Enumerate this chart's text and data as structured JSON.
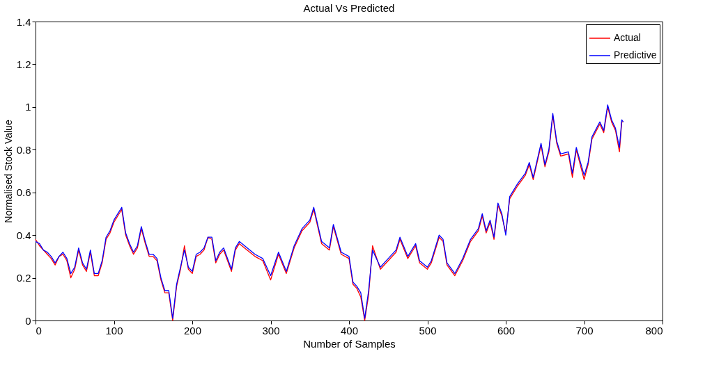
{
  "chart_data": {
    "type": "line",
    "title": "Actual Vs Predicted",
    "xlabel": "Number of Samples",
    "ylabel": "Normalised Stock Value",
    "x": [
      0,
      5,
      10,
      15,
      20,
      25,
      30,
      35,
      40,
      45,
      50,
      55,
      60,
      65,
      70,
      75,
      80,
      85,
      90,
      95,
      100,
      105,
      110,
      115,
      120,
      125,
      130,
      135,
      140,
      145,
      150,
      155,
      160,
      165,
      170,
      175,
      180,
      185,
      190,
      195,
      200,
      205,
      210,
      215,
      220,
      225,
      230,
      235,
      240,
      245,
      250,
      255,
      260,
      270,
      280,
      290,
      300,
      310,
      320,
      330,
      340,
      350,
      355,
      365,
      375,
      380,
      390,
      400,
      405,
      410,
      415,
      420,
      425,
      430,
      440,
      450,
      460,
      465,
      475,
      485,
      490,
      500,
      505,
      515,
      520,
      525,
      535,
      545,
      555,
      565,
      570,
      575,
      580,
      585,
      590,
      595,
      600,
      605,
      615,
      625,
      630,
      635,
      645,
      650,
      655,
      660,
      665,
      670,
      680,
      685,
      690,
      700,
      705,
      710,
      720,
      725,
      730,
      735,
      740,
      745,
      748,
      750
    ],
    "series": [
      {
        "name": "Actual",
        "color": "#ff0000",
        "values": [
          0.38,
          0.35,
          0.33,
          0.31,
          0.29,
          0.26,
          0.3,
          0.31,
          0.28,
          0.2,
          0.24,
          0.33,
          0.26,
          0.23,
          0.32,
          0.21,
          0.21,
          0.27,
          0.38,
          0.41,
          0.46,
          0.49,
          0.52,
          0.4,
          0.35,
          0.31,
          0.34,
          0.43,
          0.36,
          0.3,
          0.3,
          0.28,
          0.19,
          0.13,
          0.13,
          0.0,
          0.16,
          0.24,
          0.35,
          0.24,
          0.22,
          0.3,
          0.31,
          0.33,
          0.39,
          0.38,
          0.27,
          0.31,
          0.33,
          0.28,
          0.23,
          0.33,
          0.36,
          0.33,
          0.3,
          0.28,
          0.19,
          0.31,
          0.22,
          0.34,
          0.42,
          0.46,
          0.52,
          0.36,
          0.33,
          0.44,
          0.31,
          0.29,
          0.17,
          0.15,
          0.11,
          0.0,
          0.12,
          0.35,
          0.24,
          0.28,
          0.32,
          0.38,
          0.29,
          0.35,
          0.27,
          0.24,
          0.27,
          0.39,
          0.37,
          0.26,
          0.21,
          0.28,
          0.37,
          0.42,
          0.49,
          0.41,
          0.46,
          0.38,
          0.54,
          0.49,
          0.41,
          0.57,
          0.63,
          0.68,
          0.73,
          0.66,
          0.82,
          0.72,
          0.79,
          0.96,
          0.83,
          0.77,
          0.78,
          0.67,
          0.8,
          0.66,
          0.73,
          0.85,
          0.92,
          0.88,
          1.0,
          0.93,
          0.89,
          0.79,
          0.93,
          0.93
        ]
      },
      {
        "name": "Predictive",
        "color": "#0000ff",
        "values": [
          0.37,
          0.36,
          0.33,
          0.32,
          0.3,
          0.27,
          0.3,
          0.32,
          0.29,
          0.22,
          0.25,
          0.34,
          0.27,
          0.24,
          0.33,
          0.22,
          0.22,
          0.28,
          0.39,
          0.42,
          0.47,
          0.5,
          0.53,
          0.41,
          0.36,
          0.32,
          0.35,
          0.44,
          0.37,
          0.31,
          0.31,
          0.29,
          0.2,
          0.14,
          0.14,
          0.01,
          0.17,
          0.25,
          0.33,
          0.25,
          0.23,
          0.31,
          0.32,
          0.34,
          0.39,
          0.39,
          0.28,
          0.32,
          0.34,
          0.29,
          0.24,
          0.34,
          0.37,
          0.34,
          0.31,
          0.29,
          0.21,
          0.32,
          0.23,
          0.35,
          0.43,
          0.47,
          0.53,
          0.37,
          0.34,
          0.45,
          0.32,
          0.3,
          0.18,
          0.16,
          0.13,
          0.01,
          0.14,
          0.33,
          0.25,
          0.29,
          0.33,
          0.39,
          0.3,
          0.36,
          0.28,
          0.25,
          0.28,
          0.4,
          0.38,
          0.27,
          0.22,
          0.29,
          0.38,
          0.43,
          0.5,
          0.42,
          0.47,
          0.39,
          0.55,
          0.5,
          0.4,
          0.58,
          0.64,
          0.69,
          0.74,
          0.67,
          0.83,
          0.73,
          0.8,
          0.97,
          0.84,
          0.78,
          0.79,
          0.69,
          0.81,
          0.68,
          0.74,
          0.86,
          0.93,
          0.89,
          1.01,
          0.94,
          0.9,
          0.81,
          0.94,
          0.93
        ]
      }
    ],
    "xlim": [
      0,
      800
    ],
    "xticks": [
      0,
      100,
      200,
      300,
      400,
      500,
      600,
      700,
      800
    ],
    "ylim": [
      0,
      1.4
    ],
    "yticks": [
      0,
      0.2,
      0.4,
      0.6,
      0.8,
      1,
      1.2,
      1.4
    ],
    "grid": false,
    "legend": "top right",
    "line_style": "solid",
    "marker": "none"
  }
}
